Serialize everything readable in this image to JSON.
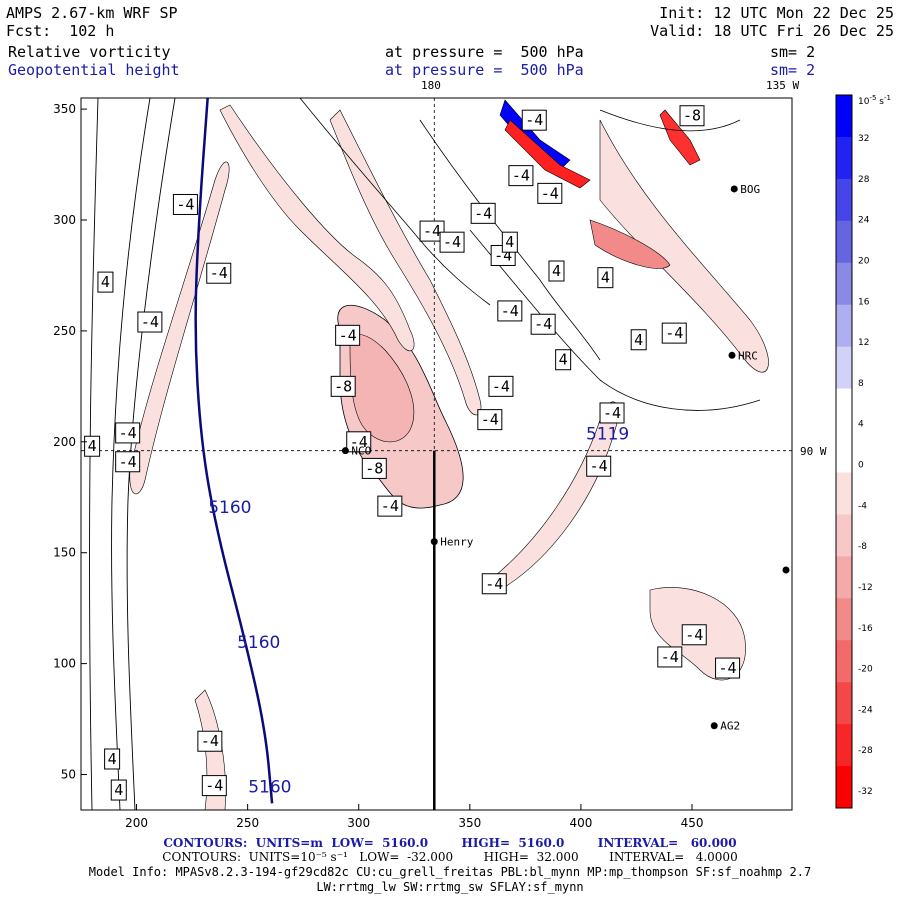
{
  "header": {
    "model": "AMPS 2.67-km WRF SP",
    "forecast": "Fcst:  102 h",
    "init": "Init: 12 UTC Mon 22 Dec 25",
    "valid": "Valid: 18 UTC Fri 26 Dec 25",
    "field1": "Relative vorticity",
    "field2": "Geopotential height",
    "pressure1": "at pressure =  500 hPa",
    "pressure2": "at pressure =  500 hPa",
    "sm1": "sm= 2",
    "sm2": "sm= 2"
  },
  "map_labels": {
    "lon_180": "180",
    "lon_135w": "135 W",
    "lat_90w": "90 W",
    "stations": [
      "BOG",
      "HRC",
      "NCO",
      "Henry",
      "AG2"
    ]
  },
  "colorbar": {
    "unit": "10",
    "unit_exp": "-5",
    "unit_tail": " s",
    "unit_tail_exp": "-1",
    "ticks": [
      "32",
      "28",
      "24",
      "20",
      "16",
      "12",
      "8",
      "4",
      "0",
      "-4",
      "-8",
      "-12",
      "-16",
      "-20",
      "-24",
      "-28",
      "-32"
    ],
    "colors": [
      "#0000ff",
      "#2222f4",
      "#4545ea",
      "#6565e2",
      "#8a8ae6",
      "#aeaef0",
      "#d2d2f8",
      "#ffffff",
      "#ffffff",
      "#fbe0e0",
      "#f8c8c8",
      "#f5aaaa",
      "#f28a8a",
      "#f26a6a",
      "#f44848",
      "#f82626",
      "#ff0000"
    ]
  },
  "footer": {
    "line1": "CONTOURS:  UNITS=m  LOW=  5160.0        HIGH=  5160.0        INTERVAL=   60.000",
    "line2": "CONTOURS:  UNITS=10⁻⁵ s⁻¹   LOW=  -32.000        HIGH=  32.000        INTERVAL=   4.0000",
    "line3": "Model Info: MPASv8.2.3-194-gf29cd82c CU:cu_grell_freitas PBL:bl_mynn MP:mp_thompson SF:sf_noahmp 2.7",
    "line4": "LW:rrtmg_lw SW:rrtmg_sw SFLAY:sf_mynn"
  },
  "chart_data": {
    "type": "contour",
    "title": "Relative vorticity / Geopotential height at 500 hPa",
    "x_ticks": [
      200,
      250,
      300,
      350,
      400,
      450
    ],
    "y_ticks": [
      50,
      100,
      150,
      200,
      250,
      300,
      350
    ],
    "xlim": [
      175,
      495
    ],
    "ylim": [
      34,
      355
    ],
    "height_contour_value": "5160",
    "height_contour": [
      [
        232,
        355
      ],
      [
        228,
        300
      ],
      [
        226,
        250
      ],
      [
        229,
        200
      ],
      [
        236,
        160
      ],
      [
        249,
        110
      ],
      [
        258,
        70
      ],
      [
        261,
        37
      ]
    ],
    "height_labels": [
      {
        "text": "5160",
        "x": 242,
        "y": 168
      },
      {
        "text": "5160",
        "x": 255,
        "y": 107
      },
      {
        "text": "5160",
        "x": 260,
        "y": 42
      }
    ],
    "vorticity_labels": [
      {
        "text": "-4",
        "x": 379,
        "y": 345
      },
      {
        "text": "-4",
        "x": 373,
        "y": 320
      },
      {
        "text": "-4",
        "x": 386,
        "y": 312
      },
      {
        "text": "-4",
        "x": 222,
        "y": 307
      },
      {
        "text": "-4",
        "x": 356,
        "y": 303
      },
      {
        "text": "-4",
        "x": 333,
        "y": 295
      },
      {
        "text": "-4",
        "x": 342,
        "y": 290
      },
      {
        "text": "-4",
        "x": 365,
        "y": 284
      },
      {
        "text": "-4",
        "x": 237,
        "y": 276
      },
      {
        "text": "-4",
        "x": 368,
        "y": 259
      },
      {
        "text": "-4",
        "x": 206,
        "y": 254
      },
      {
        "text": "-4",
        "x": 383,
        "y": 253
      },
      {
        "text": "-4",
        "x": 295,
        "y": 248
      },
      {
        "text": "-4",
        "x": 442,
        "y": 249
      },
      {
        "text": "-4",
        "x": 364,
        "y": 225
      },
      {
        "text": "-4",
        "x": 414,
        "y": 213
      },
      {
        "text": "-4",
        "x": 359,
        "y": 210
      },
      {
        "text": "-4",
        "x": 196,
        "y": 204
      },
      {
        "text": "-4",
        "x": 300,
        "y": 200
      },
      {
        "text": "-4",
        "x": 196,
        "y": 191
      },
      {
        "text": "-4",
        "x": 408,
        "y": 189
      },
      {
        "text": "-4",
        "x": 314,
        "y": 171
      },
      {
        "text": "-4",
        "x": 361,
        "y": 136
      },
      {
        "text": "-4",
        "x": 451,
        "y": 113
      },
      {
        "text": "-4",
        "x": 440,
        "y": 103
      },
      {
        "text": "-4",
        "x": 466,
        "y": 98
      },
      {
        "text": "-4",
        "x": 233,
        "y": 65
      },
      {
        "text": "-4",
        "x": 235,
        "y": 45
      },
      {
        "text": "-8",
        "x": 450,
        "y": 347
      },
      {
        "text": "-8",
        "x": 293,
        "y": 225
      },
      {
        "text": "-8",
        "x": 307,
        "y": 188
      }
    ],
    "positive_labels": [
      {
        "text": "4",
        "x": 368,
        "y": 290
      },
      {
        "text": "4",
        "x": 389,
        "y": 277
      },
      {
        "text": "4",
        "x": 186,
        "y": 272
      },
      {
        "text": "4",
        "x": 411,
        "y": 274
      },
      {
        "text": "4",
        "x": 392,
        "y": 237
      },
      {
        "text": "4",
        "x": 426,
        "y": 246
      },
      {
        "text": "4",
        "x": 180,
        "y": 198
      },
      {
        "text": "4",
        "x": 189,
        "y": 57
      },
      {
        "text": "4",
        "x": 192,
        "y": 43
      }
    ],
    "blue_label": {
      "text": "5119",
      "x": 412,
      "y": 201
    },
    "stations": [
      {
        "name": "BOG",
        "x": 469,
        "y": 314
      },
      {
        "name": "HRC",
        "x": 468,
        "y": 239
      },
      {
        "name": "NCO",
        "x": 294,
        "y": 196
      },
      {
        "name": "Henry",
        "x": 334,
        "y": 155
      },
      {
        "name": "AG2",
        "x": 460,
        "y": 72
      }
    ],
    "cross_section": {
      "x": 334,
      "y_top": 196,
      "y_bottom": 34
    },
    "ref_lines": {
      "vertical_x": 334,
      "horizontal_y": 196
    }
  }
}
